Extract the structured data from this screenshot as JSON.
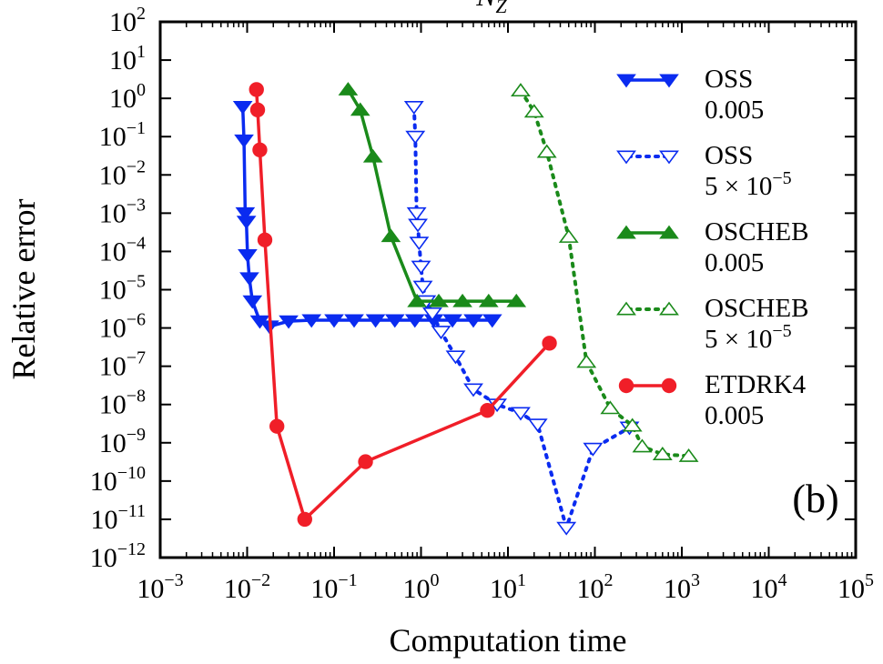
{
  "chart_data": {
    "type": "line",
    "title": "N_Z",
    "xlabel": "Computation time",
    "ylabel": "Relative error",
    "x_scale": "log",
    "y_scale": "log",
    "xlim_exp": [
      -3,
      5
    ],
    "ylim_exp": [
      -12,
      2
    ],
    "x_ticks": [
      {
        "base": "10",
        "exp": "−3"
      },
      {
        "base": "10",
        "exp": "−2"
      },
      {
        "base": "10",
        "exp": "−1"
      },
      {
        "base": "10",
        "exp": "0"
      },
      {
        "base": "10",
        "exp": "1"
      },
      {
        "base": "10",
        "exp": "2"
      },
      {
        "base": "10",
        "exp": "3"
      },
      {
        "base": "10",
        "exp": "4"
      },
      {
        "base": "10",
        "exp": "5"
      }
    ],
    "y_ticks": [
      {
        "base": "10",
        "exp": "2"
      },
      {
        "base": "10",
        "exp": "1"
      },
      {
        "base": "10",
        "exp": "0"
      },
      {
        "base": "10",
        "exp": "−1"
      },
      {
        "base": "10",
        "exp": "−2"
      },
      {
        "base": "10",
        "exp": "−3"
      },
      {
        "base": "10",
        "exp": "−4"
      },
      {
        "base": "10",
        "exp": "−5"
      },
      {
        "base": "10",
        "exp": "−6"
      },
      {
        "base": "10",
        "exp": "−7"
      },
      {
        "base": "10",
        "exp": "−8"
      },
      {
        "base": "10",
        "exp": "−9"
      },
      {
        "base": "10",
        "exp": "−10"
      },
      {
        "base": "10",
        "exp": "−11"
      },
      {
        "base": "10",
        "exp": "−12"
      }
    ],
    "panel_label": "(b)",
    "legend_position": "right",
    "series": [
      {
        "name": "OSS",
        "subtitle": "0.005",
        "color": "#0a2bf0",
        "marker": "triangle-down",
        "filled": true,
        "dash": "solid",
        "x": [
          0.0089,
          0.0092,
          0.0095,
          0.0098,
          0.0101,
          0.0106,
          0.0115,
          0.014,
          0.018,
          0.03,
          0.055,
          0.1,
          0.17,
          0.3,
          0.5,
          0.85,
          1.4,
          2.3,
          4.0,
          6.6
        ],
        "y": [
          0.6,
          0.08,
          0.001,
          0.0006,
          8e-05,
          2e-05,
          5e-06,
          1.5e-06,
          1.1e-06,
          1.5e-06,
          1.6e-06,
          1.6e-06,
          1.6e-06,
          1.6e-06,
          1.6e-06,
          1.6e-06,
          1.6e-06,
          1.6e-06,
          1.6e-06,
          1.6e-06
        ]
      },
      {
        "name": "OSS",
        "subtitle": "5 × 10−5",
        "color": "#0a2bf0",
        "marker": "triangle-down",
        "filled": false,
        "dash": "dotted",
        "x": [
          0.83,
          0.86,
          0.89,
          0.92,
          0.95,
          1.0,
          1.05,
          1.15,
          1.35,
          1.7,
          2.5,
          4.0,
          7.5,
          14,
          22,
          47,
          95,
          250
        ],
        "y": [
          0.6,
          0.1,
          0.001,
          0.0005,
          0.00017,
          4e-05,
          1.2e-05,
          5e-06,
          2.4e-06,
          8e-07,
          1.8e-07,
          2.5e-08,
          1e-08,
          6e-09,
          3e-09,
          6e-12,
          7e-10,
          2.5e-09
        ]
      },
      {
        "name": "OSCHEB",
        "subtitle": "0.005",
        "color": "#1a8a1a",
        "marker": "triangle-up",
        "filled": true,
        "dash": "solid",
        "x": [
          0.145,
          0.2,
          0.28,
          0.45,
          0.9,
          1.6,
          3.0,
          6.0,
          12.5
        ],
        "y": [
          1.7,
          0.5,
          0.03,
          0.00025,
          5e-06,
          5e-06,
          5e-06,
          5e-06,
          5e-06
        ]
      },
      {
        "name": "OSCHEB",
        "subtitle": "5 × 10−5",
        "color": "#1a8a1a",
        "marker": "triangle-up",
        "filled": false,
        "dash": "dotted",
        "x": [
          14,
          20,
          28,
          50,
          80,
          150,
          270,
          350,
          600,
          1200
        ],
        "y": [
          1.6,
          0.45,
          0.04,
          0.00024,
          1.3e-07,
          8e-09,
          2.8e-09,
          8e-10,
          5e-10,
          4.5e-10
        ]
      },
      {
        "name": "ETDRK4",
        "subtitle": "0.005",
        "color": "#f01e28",
        "marker": "circle",
        "filled": true,
        "dash": "solid",
        "x": [
          0.0128,
          0.0132,
          0.014,
          0.016,
          0.022,
          0.046,
          0.23,
          5.8,
          30
        ],
        "y": [
          1.7,
          0.5,
          0.045,
          0.0002,
          2.7e-09,
          1e-11,
          3.2e-10,
          7e-09,
          4e-07
        ]
      }
    ]
  }
}
